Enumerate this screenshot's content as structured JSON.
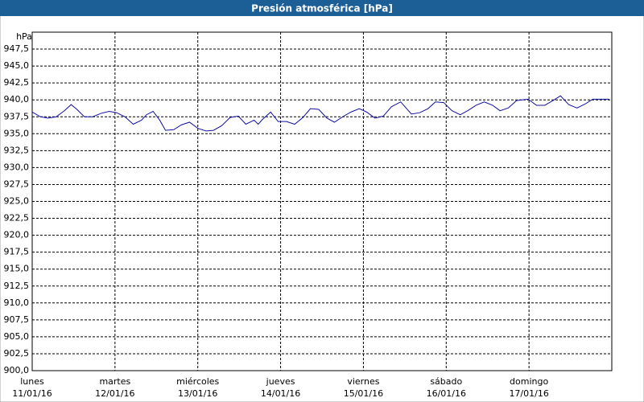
{
  "chart_data": {
    "type": "line",
    "title": "Presión atmosférica [hPa]",
    "y_label": "hPa",
    "x": [
      0,
      0.1,
      0.19,
      0.29,
      0.39,
      0.47,
      0.54,
      0.63,
      0.73,
      0.83,
      0.93,
      1.02,
      1.12,
      1.22,
      1.32,
      1.38,
      1.46,
      1.54,
      1.61,
      1.71,
      1.8,
      1.9,
      2.0,
      2.1,
      2.19,
      2.29,
      2.39,
      2.49,
      2.58,
      2.68,
      2.73,
      2.78,
      2.88,
      2.97,
      3.07,
      3.17,
      3.27,
      3.36,
      3.46,
      3.56,
      3.65,
      3.75,
      3.85,
      3.95,
      4.04,
      4.14,
      4.24,
      4.34,
      4.45,
      4.58,
      4.68,
      4.78,
      4.87,
      4.97,
      5.07,
      5.17,
      5.26,
      5.36,
      5.46,
      5.56,
      5.65,
      5.75,
      5.85,
      5.99,
      6.09,
      6.19,
      6.29,
      6.38,
      6.48,
      6.58,
      6.68,
      6.77,
      6.97
    ],
    "values": [
      938.2,
      937.5,
      937.3,
      937.5,
      938.4,
      939.3,
      938.6,
      937.5,
      937.5,
      938.0,
      938.3,
      938.1,
      937.5,
      936.4,
      937.0,
      937.8,
      938.3,
      937.0,
      935.5,
      935.6,
      936.3,
      936.7,
      935.8,
      935.4,
      935.5,
      936.2,
      937.4,
      937.6,
      936.4,
      937.0,
      936.4,
      937.1,
      938.2,
      936.8,
      936.8,
      936.4,
      937.4,
      938.7,
      938.6,
      937.3,
      936.7,
      937.5,
      938.2,
      938.7,
      938.2,
      937.3,
      937.6,
      939.0,
      939.7,
      937.9,
      938.1,
      938.7,
      939.7,
      939.6,
      938.4,
      937.8,
      938.4,
      939.2,
      939.7,
      939.2,
      938.4,
      938.8,
      939.9,
      940.1,
      939.2,
      939.2,
      939.9,
      940.6,
      939.3,
      938.8,
      939.4,
      940.1,
      940.1
    ],
    "color": "#1010a0",
    "xlim": [
      0,
      7
    ],
    "xticks": [
      {
        "value": 0,
        "label": [
          "lunes",
          "11/01/16"
        ]
      },
      {
        "value": 1,
        "label": [
          "martes",
          "12/01/16"
        ]
      },
      {
        "value": 2,
        "label": [
          "miércoles",
          "13/01/16"
        ]
      },
      {
        "value": 3,
        "label": [
          "jueves",
          "14/01/16"
        ]
      },
      {
        "value": 4,
        "label": [
          "viernes",
          "15/01/16"
        ]
      },
      {
        "value": 5,
        "label": [
          "sábado",
          "16/01/16"
        ]
      },
      {
        "value": 6,
        "label": [
          "domingo",
          "17/01/16"
        ]
      }
    ],
    "ylim": [
      900,
      950
    ],
    "yticks": [
      {
        "value": 900,
        "label": "900,0"
      },
      {
        "value": 902.5,
        "label": "902,5"
      },
      {
        "value": 905,
        "label": "905,0"
      },
      {
        "value": 907.5,
        "label": "907,5"
      },
      {
        "value": 910,
        "label": "910,0"
      },
      {
        "value": 912.5,
        "label": "912,5"
      },
      {
        "value": 915,
        "label": "915,0"
      },
      {
        "value": 917.5,
        "label": "917,5"
      },
      {
        "value": 920,
        "label": "920,0"
      },
      {
        "value": 922.5,
        "label": "922,5"
      },
      {
        "value": 925,
        "label": "925,0"
      },
      {
        "value": 927.5,
        "label": "927,5"
      },
      {
        "value": 930,
        "label": "930,0"
      },
      {
        "value": 932.5,
        "label": "932,5"
      },
      {
        "value": 935,
        "label": "935,0"
      },
      {
        "value": 937.5,
        "label": "937,5"
      },
      {
        "value": 940,
        "label": "940,0"
      },
      {
        "value": 942.5,
        "label": "942,5"
      },
      {
        "value": 945,
        "label": "945,0"
      },
      {
        "value": 947.5,
        "label": "947,5"
      }
    ],
    "grid": true
  }
}
